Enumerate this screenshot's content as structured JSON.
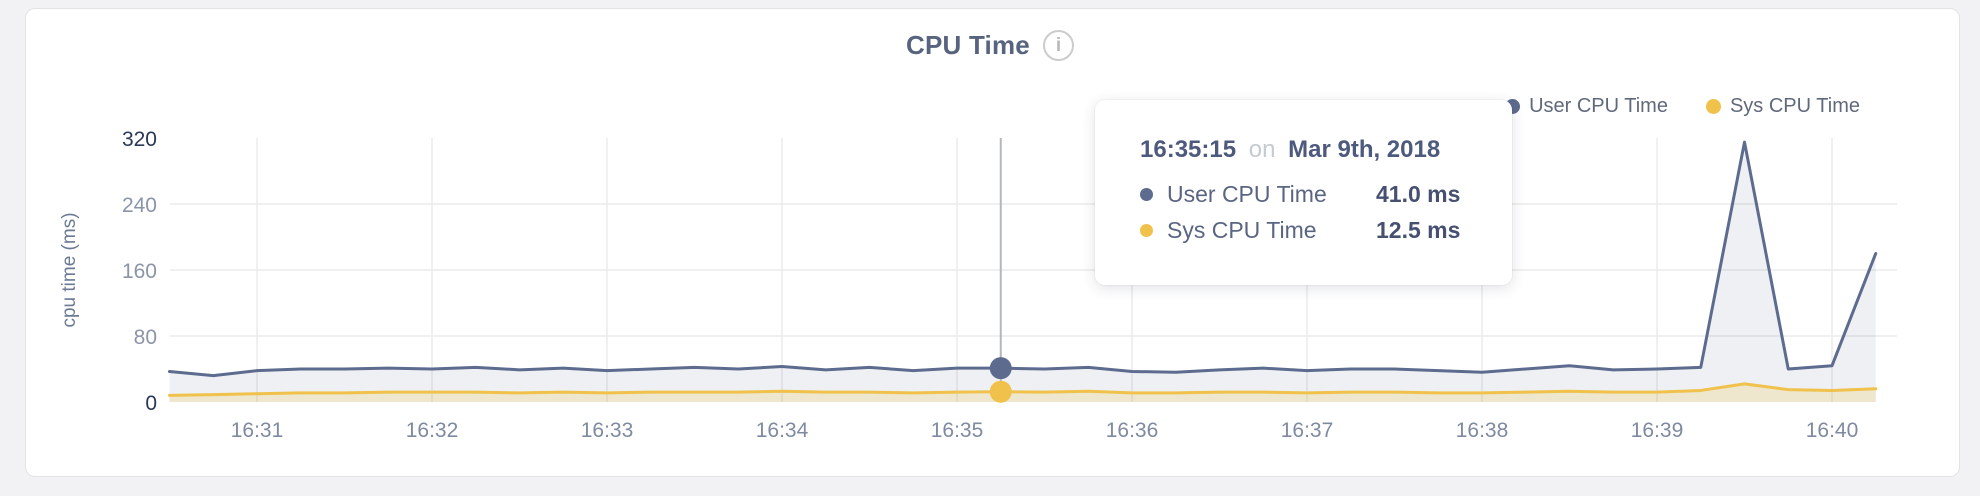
{
  "header": {
    "title": "CPU Time",
    "info_icon": "i"
  },
  "legend": {
    "items": [
      {
        "label": "User CPU Time",
        "color": "#5d6b8e"
      },
      {
        "label": "Sys CPU Time",
        "color": "#f0c24b"
      }
    ]
  },
  "tooltip": {
    "time": "16:35:15",
    "conjunction": "on",
    "date": "Mar 9th, 2018",
    "rows": [
      {
        "label": "User CPU Time",
        "value": "41.0 ms",
        "color": "#5d6b8e"
      },
      {
        "label": "Sys CPU Time",
        "value": "12.5 ms",
        "color": "#f0c24b"
      }
    ]
  },
  "chart_data": {
    "type": "area",
    "title": "CPU Time",
    "ylabel": "cpu time (ms)",
    "xlabel": "",
    "ylim": [
      0,
      320
    ],
    "yticks": [
      0,
      80,
      160,
      240,
      320
    ],
    "xticks": [
      "16:31",
      "16:32",
      "16:33",
      "16:34",
      "16:35",
      "16:36",
      "16:37",
      "16:38",
      "16:39",
      "16:40"
    ],
    "grid": true,
    "legend_position": "top-right",
    "x": [
      "16:30:30",
      "16:30:45",
      "16:31:00",
      "16:31:15",
      "16:31:30",
      "16:31:45",
      "16:32:00",
      "16:32:15",
      "16:32:30",
      "16:32:45",
      "16:33:00",
      "16:33:15",
      "16:33:30",
      "16:33:45",
      "16:34:00",
      "16:34:15",
      "16:34:30",
      "16:34:45",
      "16:35:00",
      "16:35:15",
      "16:35:30",
      "16:35:45",
      "16:36:00",
      "16:36:15",
      "16:36:30",
      "16:36:45",
      "16:37:00",
      "16:37:15",
      "16:37:30",
      "16:37:45",
      "16:38:00",
      "16:38:15",
      "16:38:30",
      "16:38:45",
      "16:39:00",
      "16:39:15",
      "16:39:30",
      "16:39:45",
      "16:40:00",
      "16:40:15"
    ],
    "series": [
      {
        "name": "User CPU Time",
        "color": "#5d6b8e",
        "fill": "rgba(93,107,142,0.10)",
        "values": [
          37,
          32,
          38,
          40,
          40,
          41,
          40,
          42,
          39,
          41,
          38,
          40,
          42,
          40,
          43,
          39,
          42,
          38,
          41,
          41,
          40,
          42,
          37,
          36,
          39,
          41,
          38,
          40,
          40,
          38,
          36,
          40,
          44,
          39,
          40,
          42,
          315,
          40,
          44,
          180
        ]
      },
      {
        "name": "Sys CPU Time",
        "color": "#f0c24b",
        "fill": "rgba(240,194,75,0.22)",
        "values": [
          8,
          9,
          10,
          11,
          11,
          12,
          12,
          12,
          11,
          12,
          11,
          12,
          12,
          12,
          13,
          12,
          12,
          11,
          12,
          12.5,
          12,
          13,
          11,
          11,
          12,
          12,
          11,
          12,
          12,
          11,
          11,
          12,
          13,
          12,
          12,
          14,
          22,
          15,
          14,
          16
        ]
      }
    ],
    "hover": {
      "time": "16:35:15",
      "index": 19,
      "user_ms": 41.0,
      "sys_ms": 12.5
    },
    "colors": {
      "grid": "#ebebeb",
      "crosshair": "#b4b7bc",
      "axis_extreme": "#2a3756",
      "axis_mid": "#8c95a7",
      "axis_x": "#7f8aa0",
      "axis_title": "#6d7a94"
    }
  }
}
